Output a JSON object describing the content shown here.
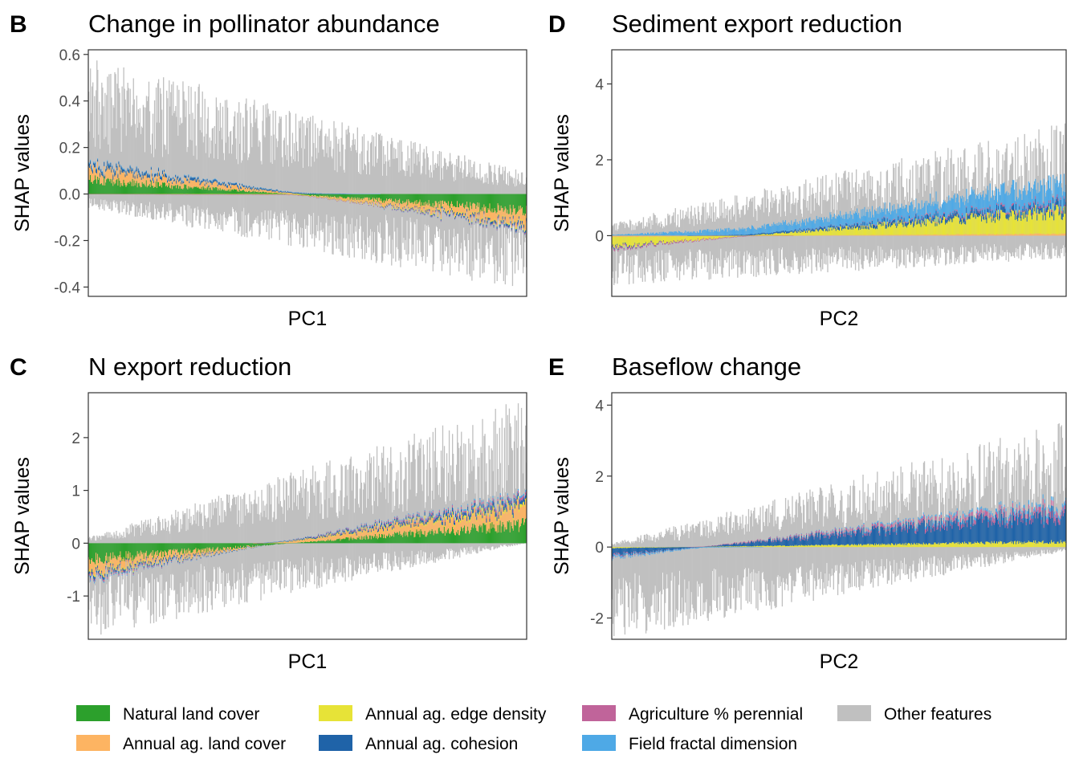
{
  "legend": {
    "position": "bottom",
    "items": [
      {
        "label": "Natural land cover",
        "color": "#2ca02c"
      },
      {
        "label": "Annual ag. land cover",
        "color": "#fdb462"
      },
      {
        "label": "Annual ag. edge density",
        "color": "#e7e337"
      },
      {
        "label": "Annual ag. cohesion",
        "color": "#1f63a8"
      },
      {
        "label": "Agriculture % perennial",
        "color": "#c0649a"
      },
      {
        "label": "Field fractal dimension",
        "color": "#4ea9e6"
      },
      {
        "label": "Other features",
        "color": "#c0c0c0"
      }
    ]
  },
  "chart_data": [
    {
      "type": "bar",
      "stacked": true,
      "panel": "B",
      "title": "Change in pollinator abundance",
      "xlabel": "PC1",
      "ylabel": "SHAP values",
      "ylim": [
        -0.44,
        0.62
      ],
      "yticks": [
        -0.4,
        -0.2,
        0.0,
        0.2,
        0.4,
        0.6
      ],
      "ytick_labels": [
        "-0.4",
        "-0.2",
        "0.0",
        "0.2",
        "0.4",
        "0.6"
      ],
      "grid": false,
      "n_observations": 540,
      "series_trend": {
        "Natural land cover": {
          "start": 0.06,
          "end": -0.07
        },
        "Annual ag. land cover": {
          "start": 0.05,
          "end": -0.05
        },
        "Annual ag. edge density": {
          "start": 0.0,
          "end": -0.005
        },
        "Annual ag. cohesion": {
          "start": 0.015,
          "end": -0.01
        },
        "Agriculture % perennial": {
          "start": 0.0,
          "end": -0.004
        },
        "Field fractal dimension": {
          "start": 0.004,
          "end": -0.002
        },
        "Other features": {
          "upper_start": 0.5,
          "upper_end": 0.08,
          "lower_start": -0.05,
          "lower_end": -0.35
        }
      }
    },
    {
      "type": "bar",
      "stacked": true,
      "panel": "D",
      "title": "Sediment export reduction",
      "xlabel": "PC2",
      "ylabel": "SHAP values",
      "ylim": [
        -1.6,
        4.9
      ],
      "yticks": [
        0,
        2,
        4
      ],
      "ytick_labels": [
        "0",
        "2",
        "4"
      ],
      "grid": false,
      "n_observations": 540,
      "series_trend": {
        "Natural land cover": {
          "start": 0.0,
          "end": 0.0
        },
        "Annual ag. land cover": {
          "start": -0.03,
          "end": 0.05
        },
        "Annual ag. edge density": {
          "start": -0.25,
          "end": 0.6
        },
        "Annual ag. cohesion": {
          "start": -0.03,
          "end": 0.15
        },
        "Agriculture % perennial": {
          "start": -0.04,
          "end": 0.06
        },
        "Field fractal dimension": {
          "start": 0.02,
          "end": 0.5
        },
        "Other features": {
          "upper_start": 0.3,
          "upper_end": 2.5,
          "lower_start": -1.1,
          "lower_end": -0.5
        }
      }
    },
    {
      "type": "bar",
      "stacked": true,
      "panel": "C",
      "title": "N export reduction",
      "xlabel": "PC1",
      "ylabel": "SHAP values",
      "ylim": [
        -1.82,
        2.85
      ],
      "yticks": [
        -1,
        0,
        1,
        2
      ],
      "ytick_labels": [
        "-1",
        "0",
        "1",
        "2"
      ],
      "grid": false,
      "n_observations": 540,
      "series_trend": {
        "Natural land cover": {
          "start": -0.3,
          "end": 0.35
        },
        "Annual ag. land cover": {
          "start": -0.2,
          "end": 0.3
        },
        "Annual ag. edge density": {
          "start": -0.03,
          "end": 0.05
        },
        "Annual ag. cohesion": {
          "start": -0.05,
          "end": 0.08
        },
        "Agriculture % perennial": {
          "start": -0.03,
          "end": 0.05
        },
        "Field fractal dimension": {
          "start": -0.02,
          "end": 0.03
        },
        "Other features": {
          "upper_start": 0.1,
          "upper_end": 2.3,
          "lower_start": -1.5,
          "lower_end": 0.0
        }
      }
    },
    {
      "type": "bar",
      "stacked": true,
      "panel": "E",
      "title": "Baseflow change",
      "xlabel": "PC2",
      "ylabel": "SHAP values",
      "ylim": [
        -2.6,
        4.35
      ],
      "yticks": [
        -2,
        0,
        2,
        4
      ],
      "ytick_labels": [
        "-2",
        "0",
        "2",
        "4"
      ],
      "grid": false,
      "n_observations": 540,
      "series_trend": {
        "Natural land cover": {
          "start": 0.0,
          "end": 0.0
        },
        "Annual ag. land cover": {
          "start": 0.0,
          "end": 0.0
        },
        "Annual ag. edge density": {
          "start": -0.03,
          "end": 0.15
        },
        "Annual ag. cohesion": {
          "start": -0.2,
          "end": 0.8
        },
        "Agriculture % perennial": {
          "start": -0.03,
          "end": 0.15
        },
        "Field fractal dimension": {
          "start": -0.05,
          "end": 0.1
        },
        "Other features": {
          "upper_start": 0.1,
          "upper_end": 3.0,
          "lower_start": -2.2,
          "lower_end": -0.1
        }
      }
    }
  ]
}
